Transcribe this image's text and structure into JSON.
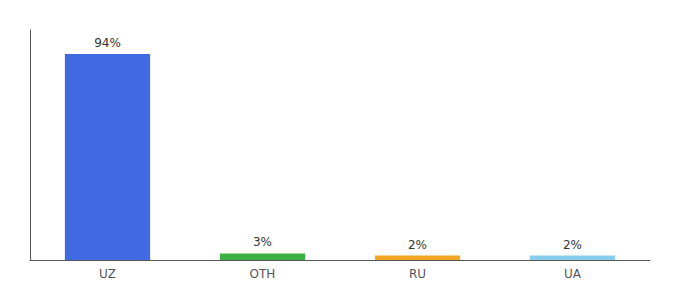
{
  "chart_data": {
    "type": "bar",
    "categories": [
      "UZ",
      "OTH",
      "RU",
      "UA"
    ],
    "values": [
      94,
      3,
      2,
      2
    ],
    "value_labels": [
      "94%",
      "3%",
      "2%",
      "2%"
    ],
    "colors": [
      "#4169e1",
      "#3cb043",
      "#f5a623",
      "#87ceeb"
    ],
    "ylim": [
      0,
      105
    ],
    "data_labels": true,
    "tick_labels": "x",
    "grid": false
  }
}
